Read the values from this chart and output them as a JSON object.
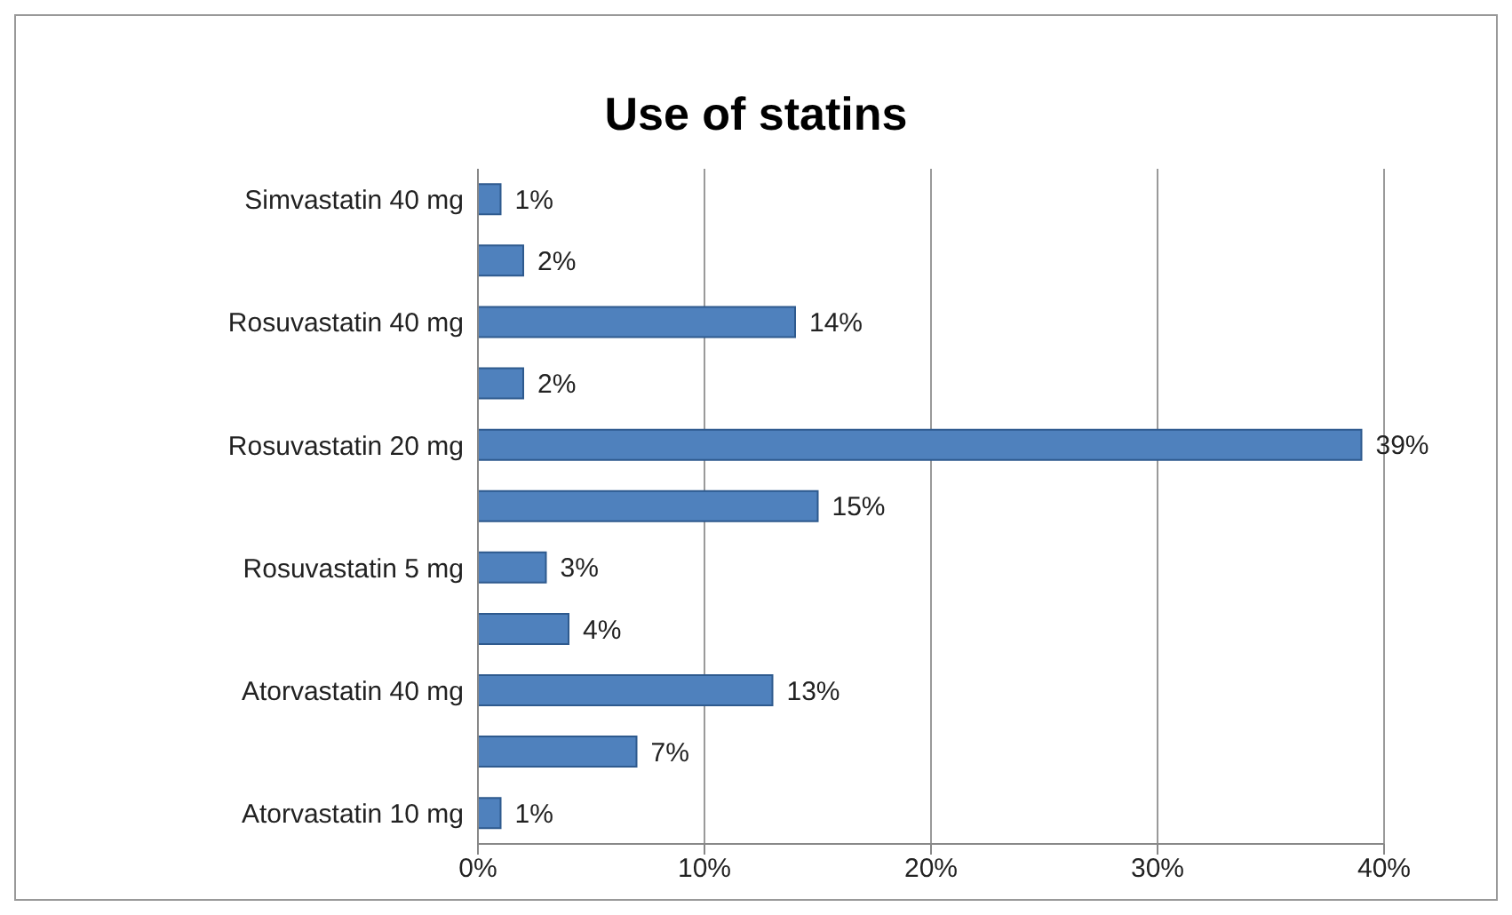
{
  "chart_data": {
    "type": "bar",
    "orientation": "horizontal",
    "title": "Use of statins",
    "categories": [
      "Simvastatin 40 mg",
      null,
      "Rosuvastatin 40 mg",
      null,
      "Rosuvastatin 20 mg",
      null,
      "Rosuvastatin 5 mg",
      null,
      "Atorvastatin 40 mg",
      null,
      "Atorvastatin 10 mg"
    ],
    "values": [
      1,
      2,
      14,
      2,
      39,
      15,
      3,
      4,
      13,
      7,
      1
    ],
    "value_labels": [
      "1%",
      "2%",
      "14%",
      "2%",
      "39%",
      "15%",
      "3%",
      "4%",
      "13%",
      "7%",
      "1%"
    ],
    "color": "#4f81bd",
    "xlim": [
      0,
      40
    ],
    "xticks": [
      {
        "value": 0,
        "label": "0%"
      },
      {
        "value": 10,
        "label": "10%"
      },
      {
        "value": 20,
        "label": "20%"
      },
      {
        "value": 30,
        "label": "30%"
      },
      {
        "value": 40,
        "label": "40%"
      }
    ],
    "grid": "x",
    "legend": false
  }
}
